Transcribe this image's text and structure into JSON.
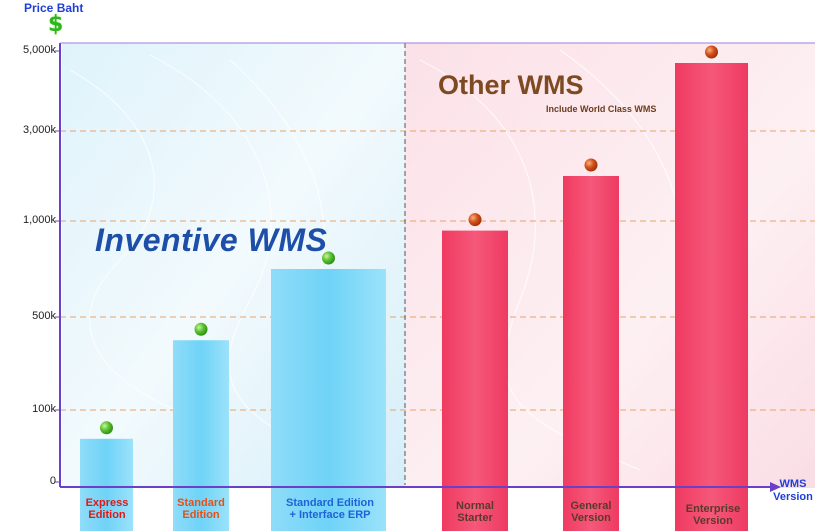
{
  "chart_data": {
    "type": "bar",
    "ylabel": "Price Baht",
    "xlabel": "WMS Version",
    "y_ticks": [
      "0",
      "100k",
      "500k",
      "1,000k",
      "3,000k",
      "5,000k"
    ],
    "categories": [
      "Express Edition",
      "Standard Edition",
      "Standard Edition + Interface ERP",
      "Normal Starter",
      "General Version",
      "Enterprise Version"
    ],
    "values": [
      60000,
      400000,
      750000,
      950000,
      2000000,
      4700000
    ],
    "groups": [
      {
        "name": "Inventive WMS",
        "categories": [
          "Express Edition",
          "Standard Edition",
          "Standard Edition + Interface ERP"
        ]
      },
      {
        "name": "Other WMS",
        "subtitle": "Include World Class WMS",
        "categories": [
          "Normal Starter",
          "General Version",
          "Enterprise Version"
        ]
      }
    ],
    "scale": "non-linear (piecewise between ticks)",
    "grid": "dashed horizontal lines at 100k, 500k, 1,000k, 3,000k",
    "colors": {
      "inventive_bar": "#6fd3f7",
      "other_bar": "#f5496b",
      "inventive_marker": "#58c12f",
      "other_marker": "#d4501c",
      "axis": "#6a3fc9",
      "grid": "#e6a46a",
      "inventive_label": "#e01818",
      "other_label": "#5a3a2a"
    }
  }
}
